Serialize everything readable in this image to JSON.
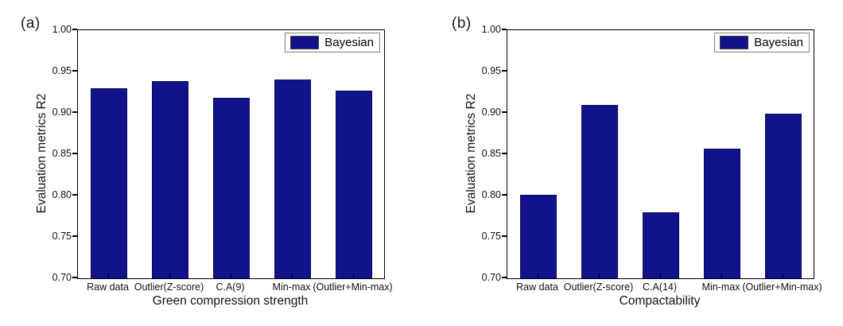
{
  "figure": {
    "background": "#ffffff",
    "axis_color": "#000000",
    "bar_color": "#12128A"
  },
  "chart_data": [
    {
      "type": "bar",
      "panel_label": "(a)",
      "title": "",
      "xlabel": "Green compression strength",
      "ylabel": "Evaluation metrics R2",
      "categories": [
        "Raw data",
        "Outlier(Z-score)",
        "C.A(9)",
        "Min-max",
        "(Outlier+Min-max)"
      ],
      "series": [
        {
          "name": "Bayesian",
          "color": "#12128A",
          "values": [
            0.93,
            0.938,
            0.918,
            0.94,
            0.927
          ]
        }
      ],
      "ylim": [
        0.7,
        1.0
      ],
      "yticks": [
        "0.70",
        "0.75",
        "0.80",
        "0.85",
        "0.90",
        "0.95",
        "1.00"
      ],
      "grid": false,
      "legend": {
        "label": "Bayesian",
        "position": "top-right",
        "swatch_color": "#12128A"
      }
    },
    {
      "type": "bar",
      "panel_label": "(b)",
      "title": "",
      "xlabel": "Compactability",
      "ylabel": "Evaluation metrics R2",
      "categories": [
        "Raw data",
        "Outlier(Z-score)",
        "C.A(14)",
        "Min-max",
        "(Outlier+Min-max)"
      ],
      "series": [
        {
          "name": "Bayesian",
          "color": "#12128A",
          "values": [
            0.801,
            0.91,
            0.78,
            0.857,
            0.899
          ]
        }
      ],
      "ylim": [
        0.7,
        1.0
      ],
      "yticks": [
        "0.70",
        "0.75",
        "0.80",
        "0.85",
        "0.90",
        "0.95",
        "1.00"
      ],
      "grid": false,
      "legend": {
        "label": "Bayesian",
        "position": "top-right",
        "swatch_color": "#12128A"
      }
    }
  ]
}
